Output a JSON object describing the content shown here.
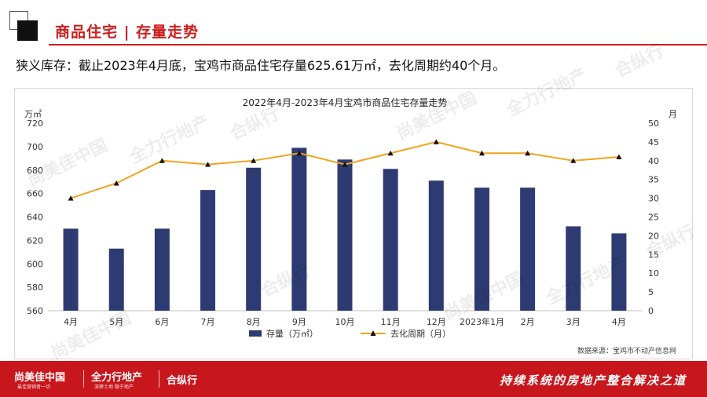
{
  "header": {
    "title": "商品住宅 | 存量走势"
  },
  "summary": "狭义库存：截止2023年4月底，宝鸡市商品住宅存量625.61万㎡，去化周期约40个月。",
  "chart_data": {
    "type": "bar+line",
    "title": "2022年4月-2023年4月宝鸡市商品住宅存量走势",
    "categories": [
      "4月",
      "5月",
      "6月",
      "7月",
      "8月",
      "9月",
      "10月",
      "11月",
      "12月",
      "2023年1月",
      "2月",
      "3月",
      "4月"
    ],
    "series": [
      {
        "name": "存量（万㎡）",
        "type": "bar",
        "axis": "left",
        "color": "#2e3b72",
        "values": [
          630,
          613,
          630,
          663,
          682,
          699,
          689,
          681,
          671,
          665,
          665,
          632,
          626
        ]
      },
      {
        "name": "去化周期（月）",
        "type": "line",
        "axis": "right",
        "color": "#f2a31b",
        "values": [
          30,
          34,
          40,
          39,
          40,
          42,
          39,
          42,
          45,
          42,
          42,
          40,
          41
        ]
      }
    ],
    "y_left": {
      "label": "万㎡",
      "min": 560,
      "max": 720,
      "ticks": [
        720,
        700,
        680,
        660,
        640,
        620,
        600,
        580,
        560
      ]
    },
    "y_right": {
      "label": "月",
      "min": 0,
      "max": 50,
      "ticks": [
        50,
        45,
        40,
        35,
        30,
        25,
        20,
        15,
        10,
        5,
        0
      ]
    },
    "grid": false,
    "legend": "bottom",
    "source": "数据来源：宝鸡市不动产信息网"
  },
  "watermarks": [
    "尚美佳中国",
    "全力行地产",
    "合纵行"
  ],
  "footer": {
    "brand1": "尚美佳中国",
    "brand1_sub": "最佳营销者一切",
    "brand2": "全力行地产",
    "brand2_sub": "深耕土地 稳于地产",
    "brand3": "合纵行",
    "slogan": "持续系统的房地产整合解决之道"
  },
  "colors": {
    "accent": "#cc1f1f",
    "footer_bg": "#c8161d",
    "bar": "#2e3b72",
    "line": "#f2a31b"
  }
}
